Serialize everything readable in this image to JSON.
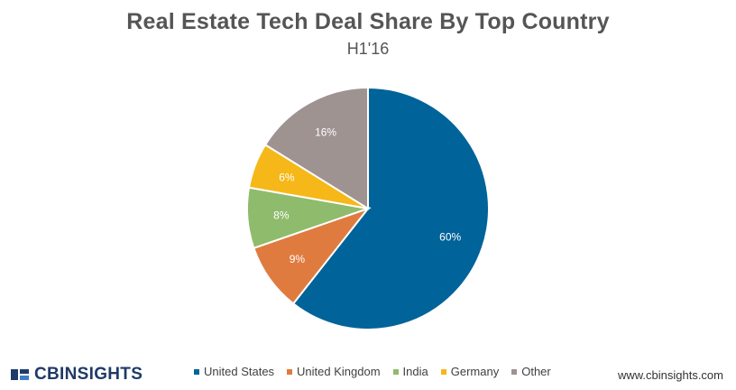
{
  "chart_data": {
    "type": "pie",
    "title": "Real Estate Tech Deal Share By Top Country",
    "subtitle": "H1'16",
    "categories": [
      "United States",
      "United Kingdom",
      "India",
      "Germany",
      "Other"
    ],
    "values": [
      60,
      9,
      8,
      6,
      16
    ],
    "labels": [
      "60%",
      "9%",
      "8%",
      "6%",
      "16%"
    ],
    "colors": [
      "#006399",
      "#e07b3f",
      "#8fbb6c",
      "#f5b818",
      "#9e9391"
    ],
    "legend_position": "bottom"
  },
  "branding": {
    "logo_text": "CBINSIGHTS",
    "website": "www.cbinsights.com"
  }
}
